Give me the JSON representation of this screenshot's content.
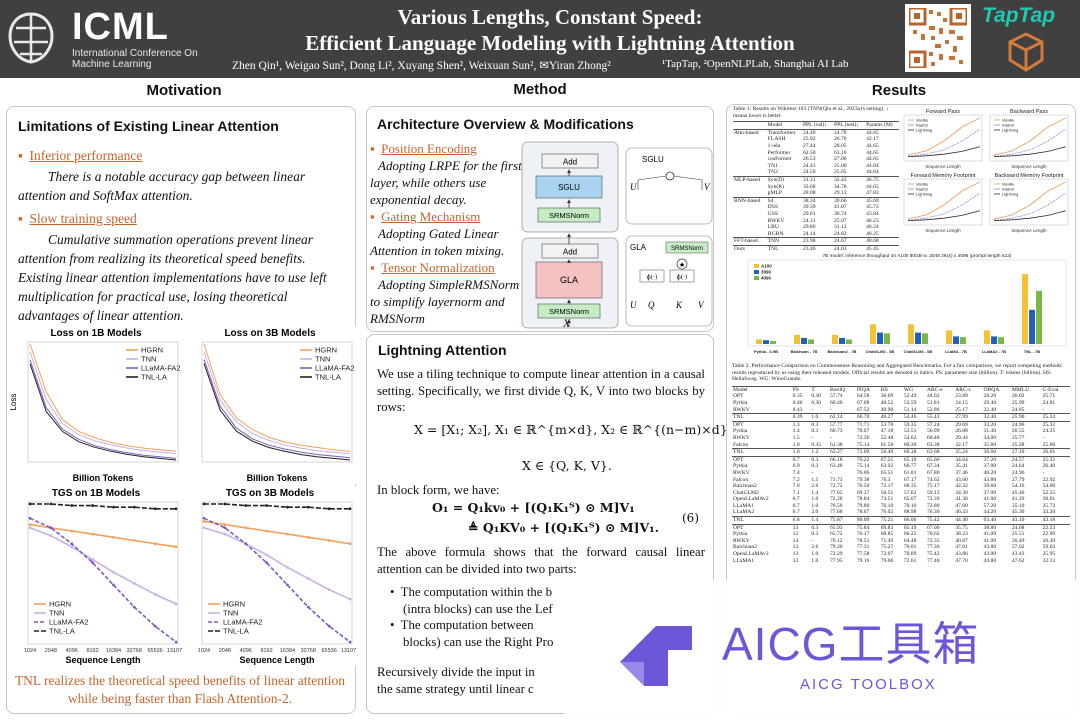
{
  "header": {
    "logo": {
      "word": "ICML",
      "subtitle": "International Conference On Machine Learning"
    },
    "title_line1": "Various Lengths, Constant Speed:",
    "title_line2": "Efficient Language Modeling with Lightning Attention",
    "authors": "Zhen Qin¹, Weigao Sun², Dong Li², Xuyang Shen², Weixuan Sun², ✉Yiran Zhong²",
    "affiliations": "¹TapTap, ²OpenNLPLab, Shanghai AI Lab",
    "sponsor": "TapTap"
  },
  "sections": {
    "motivation": "Motivation",
    "method": "Method",
    "results": "Results"
  },
  "motivation": {
    "heading": "Limitations of Existing Linear Attention",
    "point1_title": "Inferior performance",
    "point1_text": "There is a notable accuracy gap between linear attention and SoftMax attention.",
    "point2_title": "Slow training speed",
    "point2_text": "Cumulative summation operations prevent linear attention from realizing its theoretical speed benefits. Existing linear attention implementations have to use left multiplication for practical use, losing theoretical advantages of linear attention.",
    "conclusion": "TNL realizes the theoretical speed benefits of linear attention while being faster than Flash Attention-2."
  },
  "chart_data": [
    {
      "type": "line",
      "title": "Loss on 1B Models",
      "xlabel": "Billion Tokens",
      "ylabel": "Loss",
      "series": [
        {
          "name": "HGRN",
          "color": "#f5a05a",
          "values": [
            4.4,
            3.8,
            3.45,
            3.3,
            3.22,
            3.16,
            3.12,
            3.09,
            3.07,
            3.05
          ]
        },
        {
          "name": "TNN",
          "color": "#c8b0e8",
          "values": [
            4.3,
            3.7,
            3.4,
            3.26,
            3.18,
            3.13,
            3.09,
            3.06,
            3.04,
            3.02
          ]
        },
        {
          "name": "LLaMA-FA2",
          "color": "#7b5cc4",
          "values": [
            4.2,
            3.6,
            3.33,
            3.2,
            3.12,
            3.07,
            3.03,
            3.0,
            2.98,
            2.96
          ]
        },
        {
          "name": "TNL-LA",
          "color": "#222222",
          "values": [
            4.15,
            3.55,
            3.3,
            3.17,
            3.1,
            3.05,
            3.01,
            2.98,
            2.96,
            2.94
          ]
        }
      ]
    },
    {
      "type": "line",
      "title": "Loss on 3B Models",
      "xlabel": "Billion Tokens",
      "ylabel": "",
      "series": [
        {
          "name": "HGRN",
          "color": "#f5a05a",
          "values": [
            4.3,
            3.65,
            3.35,
            3.2,
            3.1,
            3.04,
            3.0,
            2.97,
            2.94,
            2.92
          ]
        },
        {
          "name": "TNN",
          "color": "#c8b0e8",
          "values": [
            4.2,
            3.58,
            3.3,
            3.15,
            3.06,
            3.0,
            2.96,
            2.93,
            2.91,
            2.89
          ]
        },
        {
          "name": "LLaMA-FA2",
          "color": "#7b5cc4",
          "values": [
            4.1,
            3.5,
            3.22,
            3.08,
            3.0,
            2.95,
            2.91,
            2.88,
            2.86,
            2.84
          ]
        },
        {
          "name": "TNL-LA",
          "color": "#222222",
          "values": [
            4.05,
            3.45,
            3.18,
            3.05,
            2.97,
            2.92,
            2.88,
            2.85,
            2.83,
            2.81
          ]
        }
      ]
    },
    {
      "type": "line",
      "title": "TGS on 1B Models",
      "xlabel": "Sequence Length",
      "ylabel": "",
      "x": [
        "1024",
        "2048",
        "4096",
        "8192",
        "16384",
        "32768",
        "65536",
        "131072"
      ],
      "series": [
        {
          "name": "HGRN",
          "color": "#f5a05a",
          "values": [
            0.82,
            0.8,
            0.78,
            0.76,
            0.74,
            0.72,
            0.7,
            0.68
          ]
        },
        {
          "name": "TNN",
          "color": "#c8b0e8",
          "values": [
            0.8,
            0.75,
            0.68,
            0.6,
            0.52,
            0.45,
            0.38,
            0.32
          ]
        },
        {
          "name": "LLaMA-FA2",
          "color": "#7b5cc4",
          "values": [
            0.86,
            0.8,
            0.7,
            0.58,
            0.44,
            0.3,
            0.18,
            0.08
          ]
        },
        {
          "name": "TNL-LA",
          "color": "#222222",
          "values": [
            0.95,
            0.95,
            0.94,
            0.94,
            0.93,
            0.93,
            0.92,
            0.92
          ]
        }
      ]
    },
    {
      "type": "line",
      "title": "TGS on 3B Models",
      "xlabel": "Sequence Length",
      "ylabel": "",
      "x": [
        "1024",
        "2048",
        "4096",
        "8192",
        "16384",
        "32768",
        "65536",
        "131072"
      ],
      "series": [
        {
          "name": "HGRN",
          "color": "#f5a05a",
          "values": [
            0.84,
            0.82,
            0.8,
            0.78,
            0.76,
            0.74,
            0.72,
            0.7
          ]
        },
        {
          "name": "TNN",
          "color": "#c8b0e8",
          "values": [
            0.8,
            0.76,
            0.7,
            0.63,
            0.55,
            0.48,
            0.41,
            0.35
          ]
        },
        {
          "name": "LLaMA-FA2",
          "color": "#7b5cc4",
          "values": [
            0.86,
            0.8,
            0.7,
            0.58,
            0.44,
            0.3,
            0.18,
            0.08
          ]
        },
        {
          "name": "TNL-LA",
          "color": "#222222",
          "values": [
            0.95,
            0.95,
            0.94,
            0.94,
            0.93,
            0.93,
            0.92,
            0.92
          ]
        }
      ]
    }
  ],
  "method": {
    "heading": "Architecture Overview & Modifications",
    "m1_title": "Position Encoding",
    "m1_text": "Adopting LRPE for the first layer, while others use exponential decay.",
    "m2_title": "Gating Mechanism",
    "m2_text": "Adopting Gated Linear Attention in token mixing.",
    "m3_title": "Tensor Normalization",
    "m3_text": "Adopting SimpleRMSNorm to simplify layernorm and RMSNorm",
    "diagram": {
      "add": "Add",
      "sglu": "SGLU",
      "srmsnorm": "SRMSNorm",
      "gla": "GLA",
      "x": "X",
      "u": "U",
      "v": "V",
      "q": "Q",
      "k": "K",
      "phi": "ϕ(·)"
    },
    "lightning_heading": "Lightning Attention",
    "lt_p1": "We use a tiling technique to compute linear attention in a causal setting. Specifically, we first divide Q, K, V into two blocks by rows:",
    "lt_eq1": "X = [X₁; X₂],  X₁ ∈ ℝ^{m×d},  X₂ ∈ ℝ^{(n−m)×d},",
    "lt_eq2": "X ∈ {Q, K, V}.",
    "lt_p2": "In block form, we have:",
    "lt_eq3": "O₁ = Q₁kv₀ + [(Q₁K₁ᵀ) ⊙ M]V₁",
    "lt_eq4": "≜ Q₁KV₀ + [(Q₁K₁ᵀ) ⊙ M]V₁.",
    "lt_eqnum": "(6)",
    "lt_p3": "The above formula shows that the forward causal linear attention can be divided into two parts:",
    "lt_b1": "The computation within the b",
    "lt_b1b": "(intra blocks) can use the Lef",
    "lt_b2": "The computation between",
    "lt_b2b": "blocks) can use the Right Pro",
    "lt_p4a": "Recursively divide the input in",
    "lt_p4b": "the same strategy until linear c"
  },
  "results": {
    "table1_caption": "Table 1: Results on Wikitest-103 (TNN(Qin et al., 2023a)'s setting). ↓ means lower is better.",
    "table1_header": [
      "Model",
      "PPL (val)↓",
      "PPL (test)↓",
      "Params (M)"
    ],
    "table1_rows": [
      [
        "Attn-based",
        "Transformer",
        "24.40",
        "24.78",
        "44.65"
      ],
      [
        "",
        "FLASH",
        "25.92",
        "26.70",
        "42.17"
      ],
      [
        "",
        "1+elu",
        "27.44",
        "28.05",
        "44.65"
      ],
      [
        "",
        "Performer",
        "62.50",
        "63.16",
        "44.65"
      ],
      [
        "",
        "cosFormer",
        "26.53",
        "27.06",
        "44.65"
      ],
      [
        "",
        "TN1",
        "24.43",
        "25.00",
        "44.64"
      ],
      [
        "",
        "TN2",
        "24.50",
        "25.05",
        "44.64"
      ],
      [
        "MLP-based",
        "Syn(D)",
        "31.31",
        "32.43",
        "46.75"
      ],
      [
        "",
        "Syn(R)",
        "33.68",
        "34.78",
        "44.65"
      ],
      [
        "",
        "gMLP",
        "28.08",
        "29.13",
        "47.83"
      ],
      [
        "RNN-based",
        "S4",
        "38.34",
        "39.66",
        "45.69"
      ],
      [
        "",
        "DSS",
        "39.39",
        "41.07",
        "45.73"
      ],
      [
        "",
        "GSS",
        "29.61",
        "30.74",
        "43.84"
      ],
      [
        "",
        "RWKV",
        "24.31",
        "25.07",
        "46.23"
      ],
      [
        "",
        "LRU",
        "29.86",
        "31.12",
        "46.24"
      ],
      [
        "",
        "HGRN",
        "24.14",
        "24.82",
        "46.25"
      ],
      [
        "FFT-based",
        "TNN",
        "23.98",
        "24.67",
        "48.68"
      ],
      [
        "Ours",
        "TNL",
        "23.46",
        "24.03",
        "45.45"
      ]
    ],
    "speed_titles": [
      "Forward Pass",
      "Backward Pass",
      "Forward Memory Footprint",
      "Backward Memory Footprint"
    ],
    "speed_legend": [
      "Vanilla",
      "Flash2",
      "Lightning"
    ],
    "speed_xlabel": "Sequence Length",
    "bar_title": "7B model: inference throughput on A100 80GB w. 2048 2K(s) x 4096 (prompt length 512)",
    "bar_legend": [
      "A100",
      "3090",
      "4090"
    ],
    "bar_categories": [
      "Pythia - 6.9B",
      "Baichuan - 7B",
      "Baichuan2 - 7B",
      "ChatGLM2 - 6B",
      "ChatGLM3 - 6B",
      "LLaMA - 7B",
      "LLaMA2 - 7B",
      "TNL - 7B"
    ],
    "table2_caption": "Table 2. Performance Comparison on Commonsense Reasoning and Aggregated Benchmarks. For a fair comparison, we report competing methods' results reproduced by us using their released models. Official results are denoted in italics. PS: parameter size (billion). T: tokens (billion). HS: HellaSwag. WG: WinoGrande.",
    "table2_header": [
      "Model",
      "PS",
      "T",
      "BoolQ",
      "PIQA",
      "HS",
      "WG",
      "ARC-e",
      "ARC-c",
      "OBQA",
      "MMLU",
      "C-Eval"
    ],
    "table2_rows": [
      [
        "OPT",
        "0.35",
        "0.30",
        "57.74",
        "64.58",
        "36.69",
        "52.49",
        "44.02",
        "23.89",
        "28.20",
        "26.02",
        "25.71"
      ],
      [
        "Pythia",
        "0.40",
        "0.30",
        "60.40",
        "67.08",
        "40.52",
        "53.59",
        "51.81",
        "24.15",
        "29.40",
        "25.99",
        "24.81"
      ],
      [
        "RWKV",
        "0.43",
        "-",
        "-",
        "67.52",
        "40.90",
        "51.14",
        "52.86",
        "25.17",
        "32.40",
        "24.85",
        "-"
      ],
      [
        "TNL",
        "0.39",
        "1.0",
        "62.14",
        "66.70",
        "46.27",
        "54.46",
        "55.43",
        "27.99",
        "32.40",
        "25.90",
        "25.24"
      ],
      [
        "OPT",
        "1.3",
        "0.3",
        "57.77",
        "71.71",
        "53.70",
        "59.35",
        "57.24",
        "29.69",
        "33.20",
        "24.96",
        "25.32"
      ],
      [
        "Pythia",
        "1.4",
        "0.3",
        "60.73",
        "70.67",
        "47.18",
        "53.51",
        "56.99",
        "26.88",
        "31.40",
        "26.55",
        "24.25"
      ],
      [
        "RWKV",
        "1.5",
        "-",
        "-",
        "72.36",
        "52.48",
        "54.62",
        "60.48",
        "29.44",
        "34.00",
        "25.77",
        "-"
      ],
      [
        "Falcon",
        "1.0",
        "0.35",
        "61.38",
        "75.14",
        "61.50",
        "60.30",
        "63.38",
        "32.17",
        "35.60",
        "25.28",
        "25.66"
      ],
      [
        "TNL",
        "1.0",
        "1.2",
        "63.27",
        "72.09",
        "56.49",
        "60.38",
        "63.68",
        "35.24",
        "36.60",
        "27.10",
        "26.01"
      ],
      [
        "OPT",
        "6.7",
        "0.3",
        "66.18",
        "76.22",
        "67.21",
        "65.19",
        "65.66",
        "34.64",
        "37.20",
        "24.57",
        "25.32"
      ],
      [
        "Pythia",
        "6.9",
        "0.3",
        "63.46",
        "75.14",
        "63.92",
        "60.77",
        "67.34",
        "35.41",
        "37.00",
        "24.64",
        "26.40"
      ],
      [
        "RWKV",
        "7.4",
        "-",
        "-",
        "76.06",
        "65.51",
        "61.01",
        "67.80",
        "37.46",
        "40.20",
        "24.96",
        "-"
      ],
      [
        "Falcon",
        "7.2",
        "1.5",
        "73.73",
        "79.38",
        "76.3",
        "67.17",
        "74.62",
        "43.60",
        "43.80",
        "27.79",
        "22.92"
      ],
      [
        "Baichuan2",
        "7.0",
        "2.6",
        "72.72",
        "76.50",
        "72.17",
        "68.35",
        "75.17",
        "42.32",
        "39.60",
        "54.16",
        "54.00"
      ],
      [
        "ChatGLM2",
        "7.1",
        "1.4",
        "77.65",
        "69.37",
        "50.51",
        "57.62",
        "59.13",
        "34.30",
        "37.00",
        "45.46",
        "52.55"
      ],
      [
        "OpenLLaMAv2",
        "6.7",
        "1.0",
        "72.20",
        "78.84",
        "74.51",
        "65.67",
        "72.39",
        "41.30",
        "41.00",
        "41.29",
        "30.01"
      ],
      [
        "LLaMA1",
        "6.7",
        "1.0",
        "76.50",
        "79.80",
        "76.10",
        "70.10",
        "72.80",
        "47.60",
        "57.20",
        "35.10",
        "25.72"
      ],
      [
        "LLaMA2",
        "6.7",
        "2.0",
        "77.68",
        "78.07",
        "76.02",
        "68.98",
        "76.30",
        "46.33",
        "44.20",
        "45.30",
        "33.20"
      ],
      [
        "TNL",
        "6.8",
        "1.4",
        "75.87",
        "80.09",
        "75.21",
        "66.06",
        "75.42",
        "44.40",
        "63.40",
        "43.10",
        "43.18"
      ],
      [
        "OPT",
        "13",
        "0.3",
        "65.93",
        "75.84",
        "69.83",
        "65.19",
        "67.00",
        "35.75",
        "38.80",
        "24.68",
        "22.23"
      ],
      [
        "Pythia",
        "12",
        "0.3",
        "65.72",
        "76.17",
        "68.85",
        "66.22",
        "70.62",
        "38.23",
        "41.00",
        "25.51",
        "22.99"
      ],
      [
        "RWKV",
        "14",
        "-",
        "70.12",
        "78.51",
        "71.49",
        "64.48",
        "72.35",
        "40.87",
        "41.00",
        "26.49",
        "26.49"
      ],
      [
        "Baichuan2",
        "13",
        "2.6",
        "79.20",
        "77.31",
        "75.27",
        "70.01",
        "77.36",
        "47.01",
        "43.80",
        "57.02",
        "59.63"
      ],
      [
        "OpenLLaMAv2",
        "13",
        "1.0",
        "72.29",
        "77.58",
        "72.07",
        "70.09",
        "75.42",
        "43.86",
        "43.00",
        "43.43",
        "25.95"
      ],
      [
        "LLaMA1",
        "13",
        "1.0",
        "77.95",
        "79.16",
        "79.06",
        "72.61",
        "77.40",
        "47.70",
        "44.80",
        "47.62",
        "32.13"
      ]
    ]
  },
  "watermark": {
    "main": "AICG工具箱",
    "sub": "AICG TOOLBOX"
  }
}
